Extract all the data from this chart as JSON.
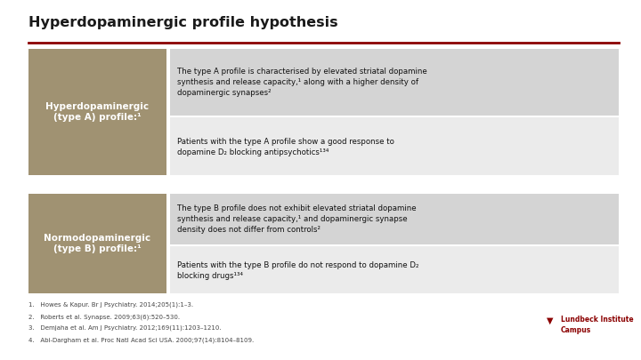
{
  "title": "Hyperdopaminergic profile hypothesis",
  "title_color": "#1a1a1a",
  "title_fontsize": 11.5,
  "bg_color": "#ffffff",
  "divider_color": "#8b0000",
  "left_box_color": "#a09272",
  "right_box_top_color": "#d4d4d4",
  "right_box_bottom_color": "#ebebeb",
  "label_A": "Hyperdopaminergic\n(type A) profile:¹",
  "label_B": "Normodopaminergic\n(type B) profile:¹",
  "text_A1": "The type A profile is characterised by elevated striatal dopamine\nsynthesis and release capacity,¹ along with a higher density of\ndopaminergic synapses²",
  "text_A2": "Patients with the type A profile show a good response to\ndopamine D₂ blocking antipsychotics¹³⁴",
  "text_B1": "The type B profile does not exhibit elevated striatal dopamine\nsynthesis and release capacity,¹ and dopaminergic synapse\ndensity does not differ from controls²",
  "text_B2": "Patients with the type B profile do not respond to dopamine D₂\nblocking drugs¹³⁴",
  "refs": [
    "1.   Howes & Kapur. Br J Psychiatry. 2014;205(1):1–3.",
    "2.   Roberts et al. Synapse. 2009;63(6):520–530.",
    "3.   Demjaha et al. Am J Psychiatry. 2012;169(11):1203–1210.",
    "4.   Abi-Dargham et al. Proc Natl Acad Sci USA. 2000;97(14):8104–8109."
  ],
  "ref_fontsize": 5.0,
  "label_fontsize": 7.5,
  "body_fontsize": 6.2,
  "logo_text": "Lundbeck Institute\nCampus",
  "logo_color": "#8b0000",
  "logo_fontsize": 5.5
}
